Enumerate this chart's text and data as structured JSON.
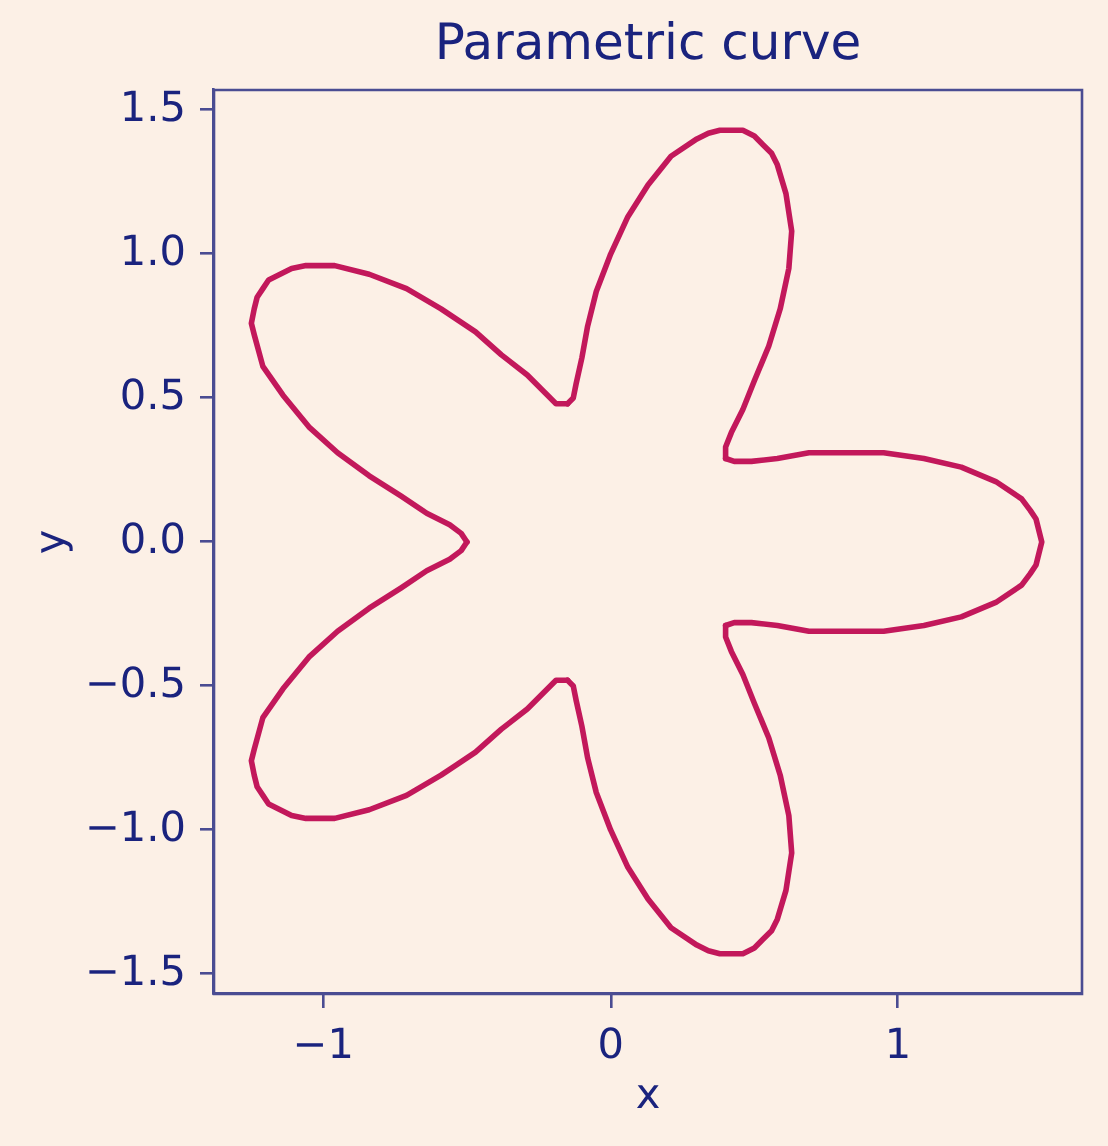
{
  "chart_data": {
    "type": "line",
    "title": "Parametric curve",
    "xlabel": "x",
    "ylabel": "y",
    "series": [
      {
        "color": "#c2185b",
        "x": [
          0.4,
          0.43,
          0.49,
          0.58,
          0.69,
          0.81,
          0.95,
          1.09,
          1.22,
          1.34,
          1.43,
          1.46,
          1.48,
          1.5,
          1.48,
          1.46,
          1.43,
          1.34,
          1.22,
          1.09,
          0.95,
          0.81,
          0.69,
          0.58,
          0.49,
          0.43,
          0.4
        ],
        "values": [
          -0.29,
          -0.28,
          -0.28,
          -0.29,
          -0.31,
          -0.31,
          -0.31,
          -0.29,
          -0.26,
          -0.21,
          -0.15,
          -0.11,
          -0.08,
          0,
          0.08,
          0.11,
          0.15,
          0.21,
          0.26,
          0.29,
          0.31,
          0.31,
          0.31,
          0.29,
          0.28,
          0.28,
          0.29
        ]
      },
      {
        "color": "#c2185b",
        "x": [
          0.4,
          0.4,
          0.42,
          0.46,
          0.5,
          0.55,
          0.59,
          0.62,
          0.63,
          0.61,
          0.58,
          0.56,
          0.53,
          0.5,
          0.46,
          0.42,
          0.38,
          0.34,
          0.3,
          0.21,
          0.13,
          0.06,
          0,
          -0.05,
          -0.08,
          -0.1,
          -0.12,
          -0.13,
          -0.15
        ],
        "values": [
          0.29,
          0.33,
          0.38,
          0.46,
          0.56,
          0.68,
          0.81,
          0.95,
          1.08,
          1.21,
          1.31,
          1.35,
          1.38,
          1.41,
          1.43,
          1.43,
          1.43,
          1.42,
          1.4,
          1.34,
          1.24,
          1.13,
          1.0,
          0.87,
          0.75,
          0.64,
          0.55,
          0.5,
          0.48
        ]
      },
      {
        "color": "#c2185b",
        "x": [
          -0.15,
          -0.19,
          -0.23,
          -0.29,
          -0.38,
          -0.47,
          -0.59,
          -0.71,
          -0.84,
          -0.96,
          -1.06,
          -1.11,
          -1.15,
          -1.19,
          -1.21,
          -1.23,
          -1.24,
          -1.25,
          -1.24,
          -1.21,
          -1.14,
          -1.05,
          -0.95,
          -0.84,
          -0.73,
          -0.64,
          -0.56,
          -0.52,
          -0.5
        ],
        "values": [
          0.48,
          0.48,
          0.52,
          0.58,
          0.65,
          0.73,
          0.81,
          0.88,
          0.93,
          0.96,
          0.96,
          0.95,
          0.93,
          0.91,
          0.88,
          0.85,
          0.81,
          0.76,
          0.72,
          0.61,
          0.51,
          0.4,
          0.31,
          0.23,
          0.16,
          0.1,
          0.06,
          0.03,
          0
        ]
      },
      {
        "color": "#c2185b",
        "x": [
          -0.5,
          -0.52,
          -0.56,
          -0.64,
          -0.73,
          -0.84,
          -0.95,
          -1.05,
          -1.14,
          -1.21,
          -1.24,
          -1.25,
          -1.24,
          -1.23,
          -1.21,
          -1.19,
          -1.15,
          -1.11,
          -1.06,
          -0.96,
          -0.84,
          -0.71,
          -0.59,
          -0.47,
          -0.38,
          -0.29,
          -0.23,
          -0.19,
          -0.15
        ],
        "values": [
          0,
          -0.03,
          -0.06,
          -0.1,
          -0.16,
          -0.23,
          -0.31,
          -0.4,
          -0.51,
          -0.61,
          -0.72,
          -0.76,
          -0.81,
          -0.85,
          -0.88,
          -0.91,
          -0.93,
          -0.95,
          -0.96,
          -0.96,
          -0.93,
          -0.88,
          -0.81,
          -0.73,
          -0.65,
          -0.58,
          -0.52,
          -0.48,
          -0.48
        ]
      },
      {
        "color": "#c2185b",
        "x": [
          -0.15,
          -0.13,
          -0.12,
          -0.1,
          -0.08,
          -0.05,
          0,
          0.06,
          0.13,
          0.21,
          0.3,
          0.34,
          0.38,
          0.42,
          0.46,
          0.5,
          0.53,
          0.56,
          0.58,
          0.61,
          0.63,
          0.62,
          0.59,
          0.55,
          0.5,
          0.46,
          0.42,
          0.4,
          0.4
        ],
        "values": [
          -0.48,
          -0.5,
          -0.55,
          -0.64,
          -0.75,
          -0.87,
          -1.0,
          -1.13,
          -1.24,
          -1.34,
          -1.4,
          -1.42,
          -1.43,
          -1.43,
          -1.43,
          -1.41,
          -1.38,
          -1.35,
          -1.31,
          -1.21,
          -1.08,
          -0.95,
          -0.81,
          -0.68,
          -0.56,
          -0.46,
          -0.38,
          -0.33,
          -0.29
        ]
      }
    ],
    "xlim": [
      -1.38,
      1.64
    ],
    "ylim": [
      -1.57,
      1.57
    ],
    "xticks": [
      {
        "value": -1,
        "label": "−1"
      },
      0,
      1
    ],
    "yticks": [
      {
        "value": -1.5,
        "label": "−1.5"
      },
      {
        "value": -1,
        "label": "−1.0"
      },
      {
        "value": -0.5,
        "label": "−0.5"
      },
      {
        "value": 0,
        "label": "0.0"
      },
      0.5,
      {
        "value": 1,
        "label": "1.0"
      },
      1.5
    ]
  }
}
